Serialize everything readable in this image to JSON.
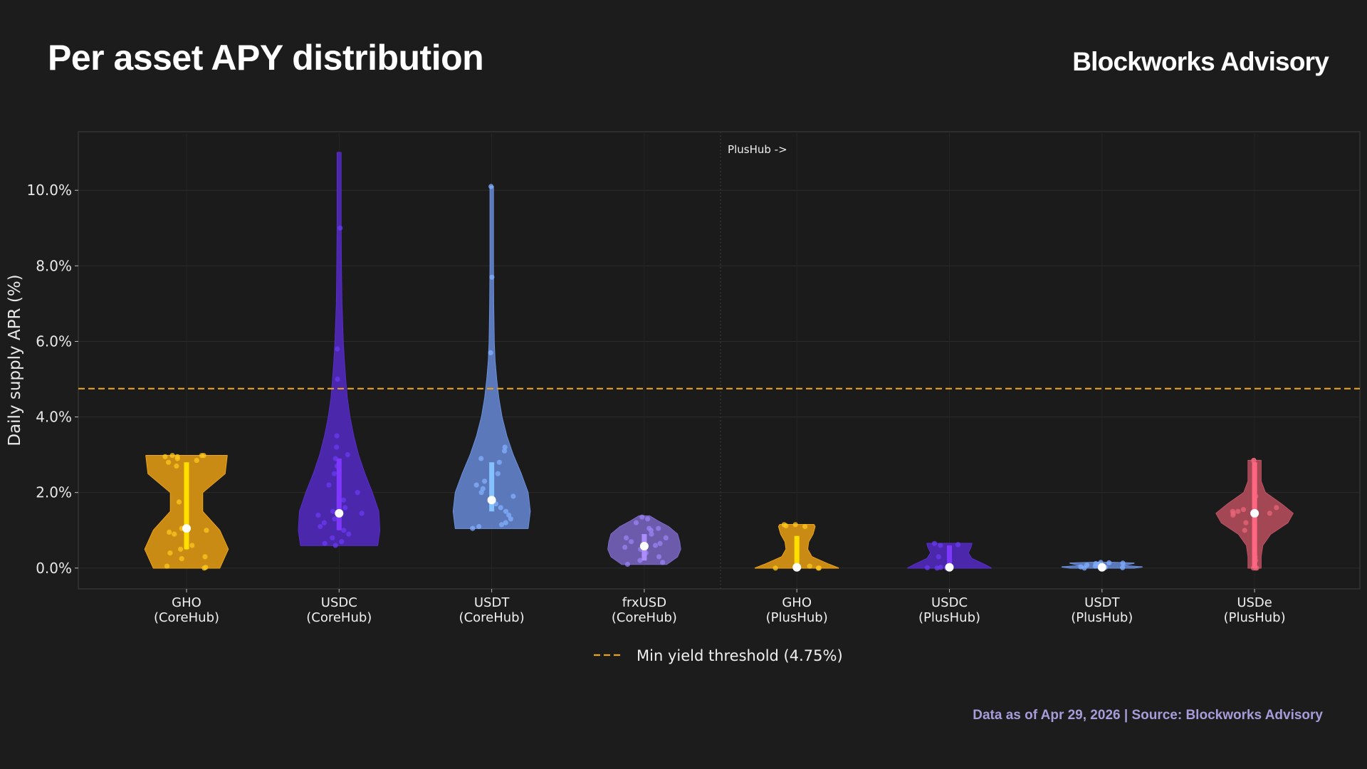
{
  "header": {
    "title": "Per asset APY distribution",
    "brand": "Blockworks Advisory"
  },
  "footer": {
    "source": "Data as of Apr 29, 2026 | Source: Blockworks Advisory"
  },
  "colors": {
    "background": "#1c1c1c",
    "plot_background": "#1b1b1b",
    "threshold_line": "#e9a21f",
    "footer_text": "#a79cd9"
  },
  "chart_data": {
    "type": "violin",
    "title": "Per asset APY distribution",
    "xlabel": "",
    "ylabel": "Daily supply APR (%)",
    "ylim": [
      -0.55,
      11.55
    ],
    "yticks": [
      0,
      2,
      4,
      6,
      8,
      10
    ],
    "ytick_labels": [
      "0.0%",
      "2.0%",
      "4.0%",
      "6.0%",
      "8.0%",
      "10.0%"
    ],
    "grid": true,
    "divider_annotation": "PlusHub ->",
    "threshold": {
      "value": 4.75,
      "label": "Min yield threshold (4.75%)"
    },
    "categories": [
      {
        "name": "GHO",
        "hub": "(CoreHub)",
        "color": "#c68a14",
        "min": 0,
        "max": 2.98,
        "q1": 0.5,
        "q3": 2.8,
        "median": 1.05,
        "density": [
          [
            0,
            0.62
          ],
          [
            0.5,
            0.78
          ],
          [
            1.0,
            0.62
          ],
          [
            1.5,
            0.3
          ],
          [
            2.0,
            0.3
          ],
          [
            2.5,
            0.72
          ],
          [
            2.98,
            0.76
          ]
        ],
        "points": [
          0,
          0.02,
          0.05,
          0.25,
          0.3,
          0.4,
          0.5,
          0.55,
          0.6,
          0.9,
          0.95,
          1.0,
          1.05,
          1.75,
          1.8,
          2.7,
          2.8,
          2.85,
          2.9,
          2.95,
          2.95,
          2.98,
          2.98,
          2.98
        ]
      },
      {
        "name": "USDC",
        "hub": "(CoreHub)",
        "color": "#4a27a8",
        "min": 0.6,
        "max": 11.0,
        "q1": 1.0,
        "q3": 2.9,
        "median": 1.45,
        "density": [
          [
            0.6,
            0.72
          ],
          [
            1.0,
            0.76
          ],
          [
            1.5,
            0.74
          ],
          [
            2.0,
            0.62
          ],
          [
            2.5,
            0.48
          ],
          [
            3.0,
            0.36
          ],
          [
            3.5,
            0.27
          ],
          [
            4.0,
            0.2
          ],
          [
            4.5,
            0.15
          ],
          [
            5.0,
            0.12
          ],
          [
            5.5,
            0.095
          ],
          [
            6.0,
            0.075
          ],
          [
            7.0,
            0.05
          ],
          [
            8.0,
            0.04
          ],
          [
            9.0,
            0.035
          ],
          [
            10.0,
            0.035
          ],
          [
            11.0,
            0.035
          ]
        ],
        "points": [
          0.6,
          0.65,
          0.7,
          0.8,
          0.9,
          1.0,
          1.1,
          1.2,
          1.3,
          1.4,
          1.45,
          1.5,
          1.6,
          1.8,
          2.0,
          2.2,
          2.5,
          2.7,
          2.9,
          3.0,
          3.2,
          3.5,
          5.0,
          5.8,
          9.0
        ]
      },
      {
        "name": "USDT",
        "hub": "(CoreHub)",
        "color": "#5a78b8",
        "min": 1.05,
        "max": 10.1,
        "q1": 1.5,
        "q3": 2.8,
        "median": 1.8,
        "density": [
          [
            1.05,
            0.68
          ],
          [
            1.5,
            0.72
          ],
          [
            2.0,
            0.68
          ],
          [
            2.5,
            0.55
          ],
          [
            3.0,
            0.4
          ],
          [
            3.5,
            0.28
          ],
          [
            4.0,
            0.19
          ],
          [
            4.5,
            0.13
          ],
          [
            5.0,
            0.09
          ],
          [
            5.5,
            0.06
          ],
          [
            6.0,
            0.045
          ],
          [
            7.0,
            0.035
          ],
          [
            8.0,
            0.03
          ],
          [
            9.0,
            0.03
          ],
          [
            10.1,
            0.03
          ]
        ],
        "points": [
          1.05,
          1.1,
          1.15,
          1.2,
          1.3,
          1.4,
          1.5,
          1.6,
          1.7,
          1.8,
          1.9,
          2.0,
          2.1,
          2.2,
          2.3,
          2.5,
          2.8,
          2.9,
          3.1,
          3.2,
          5.7,
          7.7,
          10.1
        ]
      },
      {
        "name": "frxUSD",
        "hub": "(CoreHub)",
        "color": "#6a5aa8",
        "min": 0.1,
        "max": 1.38,
        "q1": 0.2,
        "q3": 0.9,
        "median": 0.58,
        "density": [
          [
            0.1,
            0.42
          ],
          [
            0.3,
            0.62
          ],
          [
            0.5,
            0.68
          ],
          [
            0.7,
            0.66
          ],
          [
            0.9,
            0.62
          ],
          [
            1.1,
            0.45
          ],
          [
            1.25,
            0.25
          ],
          [
            1.38,
            0.1
          ]
        ],
        "points": [
          0.1,
          0.15,
          0.2,
          0.3,
          0.4,
          0.5,
          0.55,
          0.6,
          0.65,
          0.7,
          0.8,
          0.8,
          0.9,
          1.0,
          1.05,
          1.05,
          1.2,
          1.3,
          1.35
        ]
      },
      {
        "name": "GHO",
        "hub": "(PlusHub)",
        "color": "#c68a14",
        "min": 0,
        "max": 1.15,
        "q1": 0.0,
        "q3": 0.85,
        "median": 0.02,
        "density": [
          [
            0,
            0.78
          ],
          [
            0.1,
            0.6
          ],
          [
            0.3,
            0.28
          ],
          [
            0.5,
            0.2
          ],
          [
            0.7,
            0.22
          ],
          [
            0.9,
            0.3
          ],
          [
            1.1,
            0.34
          ],
          [
            1.15,
            0.32
          ]
        ],
        "points": [
          0,
          0,
          0,
          0.02,
          0.05,
          1.1,
          1.12,
          1.15,
          1.15
        ]
      },
      {
        "name": "USDC",
        "hub": "(PlusHub)",
        "color": "#4a27a8",
        "min": 0,
        "max": 0.65,
        "q1": 0.0,
        "q3": 0.6,
        "median": 0.02,
        "density": [
          [
            0,
            0.78
          ],
          [
            0.1,
            0.65
          ],
          [
            0.25,
            0.42
          ],
          [
            0.4,
            0.35
          ],
          [
            0.55,
            0.4
          ],
          [
            0.65,
            0.42
          ]
        ],
        "points": [
          0,
          0,
          0.01,
          0.02,
          0.3,
          0.6,
          0.62,
          0.65
        ]
      },
      {
        "name": "USDT",
        "hub": "(PlusHub)",
        "color": "#5a78b8",
        "min": 0.0,
        "max": 0.15,
        "q1": 0.02,
        "q3": 0.12,
        "median": 0.02,
        "density": [
          [
            0,
            0.6
          ],
          [
            0.03,
            0.75
          ],
          [
            0.07,
            0.35
          ],
          [
            0.1,
            0.5
          ],
          [
            0.13,
            0.6
          ],
          [
            0.15,
            0.2
          ]
        ],
        "points": [
          0,
          0.01,
          0.02,
          0.03,
          0.05,
          0.08,
          0.1,
          0.12,
          0.13,
          0.14,
          0.15
        ]
      },
      {
        "name": "USDe",
        "hub": "(PlusHub)",
        "color": "#a14653",
        "min": 0,
        "max": 2.85,
        "q1": 0.0,
        "q3": 2.8,
        "median": 1.45,
        "density": [
          [
            0,
            0.12
          ],
          [
            0.3,
            0.12
          ],
          [
            0.6,
            0.15
          ],
          [
            0.9,
            0.3
          ],
          [
            1.2,
            0.62
          ],
          [
            1.45,
            0.72
          ],
          [
            1.7,
            0.5
          ],
          [
            2.0,
            0.2
          ],
          [
            2.3,
            0.12
          ],
          [
            2.6,
            0.12
          ],
          [
            2.85,
            0.12
          ]
        ],
        "points": [
          0,
          0,
          0,
          0.2,
          0.3,
          1.0,
          1.2,
          1.4,
          1.45,
          1.45,
          1.5,
          1.5,
          1.55,
          1.6,
          1.9,
          2.85,
          2.85
        ]
      }
    ]
  }
}
